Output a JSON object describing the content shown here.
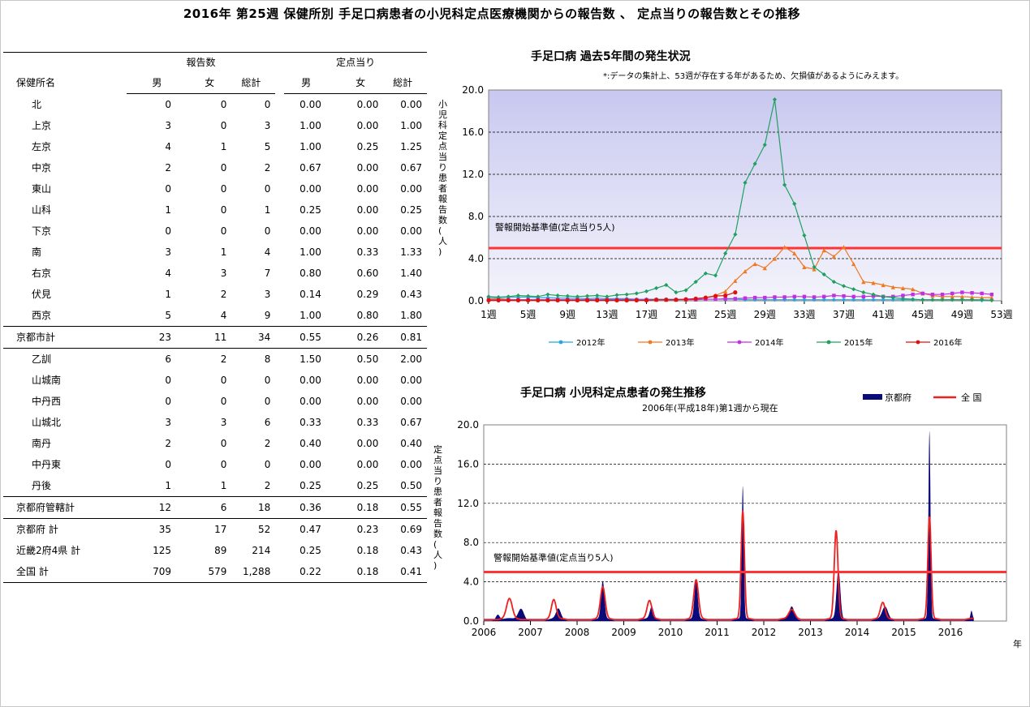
{
  "page_title": "2016年 第25週 保健所別 手足口病患者の小児科定点医療機関からの報告数 、 定点当りの報告数とその推移",
  "table": {
    "group_reports": "報告数",
    "group_per": "定点当り",
    "name_header": "保健所名",
    "cols": [
      "男",
      "女",
      "総計",
      "男",
      "女",
      "総計"
    ],
    "rows": [
      {
        "name": "北",
        "v": [
          "0",
          "0",
          "0",
          "0.00",
          "0.00",
          "0.00"
        ]
      },
      {
        "name": "上京",
        "v": [
          "3",
          "0",
          "3",
          "1.00",
          "0.00",
          "1.00"
        ]
      },
      {
        "name": "左京",
        "v": [
          "4",
          "1",
          "5",
          "1.00",
          "0.25",
          "1.25"
        ]
      },
      {
        "name": "中京",
        "v": [
          "2",
          "0",
          "2",
          "0.67",
          "0.00",
          "0.67"
        ]
      },
      {
        "name": "東山",
        "v": [
          "0",
          "0",
          "0",
          "0.00",
          "0.00",
          "0.00"
        ]
      },
      {
        "name": "山科",
        "v": [
          "1",
          "0",
          "1",
          "0.25",
          "0.00",
          "0.25"
        ]
      },
      {
        "name": "下京",
        "v": [
          "0",
          "0",
          "0",
          "0.00",
          "0.00",
          "0.00"
        ]
      },
      {
        "name": "南",
        "v": [
          "3",
          "1",
          "4",
          "1.00",
          "0.33",
          "1.33"
        ]
      },
      {
        "name": "右京",
        "v": [
          "4",
          "3",
          "7",
          "0.80",
          "0.60",
          "1.40"
        ]
      },
      {
        "name": "伏見",
        "v": [
          "1",
          "2",
          "3",
          "0.14",
          "0.29",
          "0.43"
        ]
      },
      {
        "name": "西京",
        "v": [
          "5",
          "4",
          "9",
          "1.00",
          "0.80",
          "1.80"
        ]
      },
      {
        "name": "京都市計",
        "v": [
          "23",
          "11",
          "34",
          "0.55",
          "0.26",
          "0.81"
        ]
      },
      {
        "name": "乙訓",
        "v": [
          "6",
          "2",
          "8",
          "1.50",
          "0.50",
          "2.00"
        ]
      },
      {
        "name": "山城南",
        "v": [
          "0",
          "0",
          "0",
          "0.00",
          "0.00",
          "0.00"
        ]
      },
      {
        "name": "中丹西",
        "v": [
          "0",
          "0",
          "0",
          "0.00",
          "0.00",
          "0.00"
        ]
      },
      {
        "name": "山城北",
        "v": [
          "3",
          "3",
          "6",
          "0.33",
          "0.33",
          "0.67"
        ]
      },
      {
        "name": "南丹",
        "v": [
          "2",
          "0",
          "2",
          "0.40",
          "0.00",
          "0.40"
        ]
      },
      {
        "name": "中丹東",
        "v": [
          "0",
          "0",
          "0",
          "0.00",
          "0.00",
          "0.00"
        ]
      },
      {
        "name": "丹後",
        "v": [
          "1",
          "1",
          "2",
          "0.25",
          "0.25",
          "0.50"
        ]
      },
      {
        "name": "京都府管轄計",
        "v": [
          "12",
          "6",
          "18",
          "0.36",
          "0.18",
          "0.55"
        ]
      },
      {
        "name": "京都府 計",
        "v": [
          "35",
          "17",
          "52",
          "0.47",
          "0.23",
          "0.69"
        ]
      },
      {
        "name": "近畿2府4県 計",
        "v": [
          "125",
          "89",
          "214",
          "0.25",
          "0.18",
          "0.43"
        ]
      },
      {
        "name": "全国 計",
        "v": [
          "709",
          "579",
          "1,288",
          "0.22",
          "0.18",
          "0.41"
        ]
      }
    ]
  },
  "chart_data": [
    {
      "type": "line",
      "title": "手足口病 過去5年間の発生状況",
      "note": "*:データの集計上、53週が存在する年があるため、欠損値があるようにみえます。",
      "ylabel": "小児科定点当り患者報告数(人)",
      "ylim": [
        0,
        20
      ],
      "yticks": [
        "0.0",
        "4.0",
        "8.0",
        "12.0",
        "16.0",
        "20.0"
      ],
      "xticks": [
        "1週",
        "5週",
        "9週",
        "13週",
        "17週",
        "21週",
        "25週",
        "29週",
        "33週",
        "37週",
        "41週",
        "45週",
        "49週",
        "53週"
      ],
      "threshold": {
        "value": 5,
        "label": "警報開始基準値(定点当り5人)"
      },
      "colors": {
        "2012年": "#22a8e0",
        "2013年": "#f07820",
        "2014年": "#c030e0",
        "2015年": "#20a060",
        "2016年": "#e01010",
        "threshold": "#ff3333",
        "bg_top": "#c8c8f0",
        "bg_bottom": "#f4f4fc"
      },
      "series": [
        {
          "name": "2012年",
          "marker": "diamond",
          "values": [
            0.35,
            0.3,
            0.35,
            0.35,
            0.35,
            0.3,
            0.3,
            0.25,
            0.25,
            0.25,
            0.2,
            0.25,
            0.2,
            0.2,
            0.2,
            0.15,
            0.15,
            0.15,
            0.15,
            0.15,
            0.15,
            0.15,
            0.15,
            0.15,
            0.15,
            0.15,
            0.1,
            0.1,
            0.1,
            0.1,
            0.1,
            0.1,
            0.1,
            0.1,
            0.1,
            0.1,
            0.1,
            0.1,
            0.1,
            0.1,
            0.1,
            0.1,
            0.1,
            0.1,
            0.1,
            0.1,
            0.1,
            0.1,
            0.1,
            0.1,
            0.05,
            0.05
          ]
        },
        {
          "name": "2013年",
          "marker": "triangle",
          "values": [
            0.2,
            0.2,
            0.15,
            0.1,
            0.1,
            0.1,
            0.1,
            0.1,
            0.1,
            0.1,
            0.1,
            0.1,
            0.1,
            0.1,
            0.1,
            0.1,
            0.1,
            0.1,
            0.1,
            0.1,
            0.15,
            0.2,
            0.3,
            0.5,
            0.9,
            1.9,
            2.8,
            3.5,
            3.1,
            4.0,
            5.1,
            4.5,
            3.2,
            3.0,
            4.8,
            4.2,
            5.1,
            3.5,
            1.8,
            1.7,
            1.5,
            1.3,
            1.2,
            1.1,
            0.7,
            0.5,
            0.4,
            0.4,
            0.4,
            0.35,
            0.3,
            0.3
          ]
        },
        {
          "name": "2014年",
          "marker": "square",
          "values": [
            0.1,
            0.1,
            0.1,
            0.1,
            0.1,
            0.1,
            0.1,
            0.1,
            0.1,
            0.1,
            0.1,
            0.1,
            0.1,
            0.1,
            0.1,
            0.1,
            0.1,
            0.1,
            0.1,
            0.1,
            0.1,
            0.1,
            0.15,
            0.15,
            0.2,
            0.2,
            0.25,
            0.3,
            0.3,
            0.35,
            0.35,
            0.4,
            0.4,
            0.35,
            0.4,
            0.5,
            0.45,
            0.4,
            0.4,
            0.45,
            0.4,
            0.4,
            0.5,
            0.6,
            0.7,
            0.6,
            0.6,
            0.7,
            0.8,
            0.75,
            0.7,
            0.6
          ]
        },
        {
          "name": "2015年",
          "marker": "diamond",
          "values": [
            0.4,
            0.35,
            0.4,
            0.5,
            0.45,
            0.4,
            0.6,
            0.5,
            0.45,
            0.4,
            0.45,
            0.5,
            0.4,
            0.55,
            0.6,
            0.7,
            0.9,
            1.2,
            1.5,
            0.8,
            1.0,
            1.8,
            2.6,
            2.4,
            4.5,
            6.3,
            11.2,
            13.0,
            14.8,
            19.1,
            11.0,
            9.2,
            6.2,
            3.2,
            2.5,
            1.8,
            1.4,
            1.1,
            0.8,
            0.6,
            0.4,
            0.3,
            0.2,
            0.15,
            0.1,
            0.1,
            0.1,
            0.1,
            0.1,
            0.1,
            0.1,
            0.05
          ]
        },
        {
          "name": "2016年",
          "marker": "circle",
          "values": [
            0.05,
            0.05,
            0.05,
            0.05,
            0.05,
            0.05,
            0.05,
            0.05,
            0.05,
            0.05,
            0.05,
            0.05,
            0.05,
            0.05,
            0.05,
            0.05,
            0.05,
            0.1,
            0.1,
            0.1,
            0.15,
            0.2,
            0.3,
            0.45,
            0.5,
            0.8
          ]
        }
      ]
    },
    {
      "type": "area",
      "title": "手足口病 小児科定点患者の発生推移",
      "subtitle": "2006年(平成18年)第1週から現在",
      "ylabel": "定点当り患者報告数(人)",
      "xlabel": "年",
      "ylim": [
        0,
        20
      ],
      "yticks": [
        "0.0",
        "4.0",
        "8.0",
        "12.0",
        "16.0",
        "20.0"
      ],
      "years": [
        "2006",
        "2007",
        "2008",
        "2009",
        "2010",
        "2011",
        "2012",
        "2013",
        "2014",
        "2015",
        "2016"
      ],
      "threshold": {
        "value": 5,
        "label": "警報開始基準値(定点当り5人)"
      },
      "colors": {
        "京都府": "#0a0a78",
        "全 国": "#ee2020",
        "threshold": "#ff3333"
      },
      "series": [
        {
          "name": "京都府",
          "kind": "area",
          "peaks": [
            [
              2006.3,
              0.6,
              0.04
            ],
            [
              2006.8,
              1.2,
              0.06
            ],
            [
              2007.6,
              1.0,
              0.05
            ],
            [
              2008.55,
              3.8,
              0.035
            ],
            [
              2009.6,
              1.2,
              0.04
            ],
            [
              2010.55,
              3.8,
              0.035
            ],
            [
              2011.55,
              13.5,
              0.022
            ],
            [
              2012.6,
              1.2,
              0.05
            ],
            [
              2013.6,
              5.0,
              0.04
            ],
            [
              2014.6,
              1.2,
              0.06
            ],
            [
              2015.55,
              19.1,
              0.022
            ],
            [
              2016.45,
              0.8,
              0.02
            ]
          ]
        },
        {
          "name": "全 国",
          "kind": "line",
          "peaks": [
            [
              2006.55,
              2.0,
              0.06
            ],
            [
              2007.5,
              1.9,
              0.05
            ],
            [
              2008.55,
              3.2,
              0.05
            ],
            [
              2009.55,
              1.8,
              0.05
            ],
            [
              2010.55,
              3.9,
              0.05
            ],
            [
              2011.55,
              10.9,
              0.035
            ],
            [
              2012.6,
              0.9,
              0.06
            ],
            [
              2013.55,
              8.9,
              0.04
            ],
            [
              2014.55,
              1.6,
              0.05
            ],
            [
              2015.55,
              10.3,
              0.035
            ]
          ]
        }
      ]
    }
  ]
}
